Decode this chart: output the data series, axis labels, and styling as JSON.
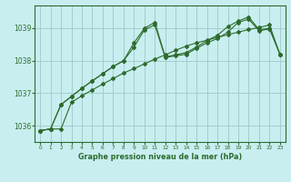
{
  "title": "Graphe pression niveau de la mer (hPa)",
  "background_color": "#c8eef0",
  "grid_color": "#a0c8c8",
  "line_color": "#2d6b2d",
  "xlim": [
    -0.5,
    23.5
  ],
  "ylim": [
    1035.5,
    1039.7
  ],
  "yticks": [
    1036,
    1037,
    1038,
    1039
  ],
  "xticks": [
    0,
    1,
    2,
    3,
    4,
    5,
    6,
    7,
    8,
    9,
    10,
    11,
    12,
    13,
    14,
    15,
    16,
    17,
    18,
    19,
    20,
    21,
    22,
    23
  ],
  "series1_x": [
    0,
    1,
    2,
    3,
    4,
    5,
    6,
    7,
    8,
    9,
    10,
    11,
    12,
    13,
    14,
    15,
    16,
    17,
    18,
    19,
    20,
    21,
    22,
    23
  ],
  "series1_y": [
    1035.85,
    1035.9,
    1036.65,
    1036.9,
    1037.15,
    1037.38,
    1037.6,
    1037.82,
    1038.0,
    1038.42,
    1038.95,
    1039.1,
    1038.1,
    1038.15,
    1038.2,
    1038.38,
    1038.55,
    1038.68,
    1038.88,
    1039.18,
    1039.28,
    1038.92,
    1038.98,
    1038.2
  ],
  "series2_x": [
    0,
    1,
    2,
    3,
    4,
    5,
    6,
    7,
    8,
    9,
    10,
    11,
    12,
    13,
    14,
    15,
    16,
    17,
    18,
    19,
    20,
    21,
    22,
    23
  ],
  "series2_y": [
    1035.85,
    1035.9,
    1036.65,
    1036.9,
    1037.15,
    1037.38,
    1037.6,
    1037.82,
    1038.0,
    1038.55,
    1039.0,
    1039.18,
    1038.12,
    1038.18,
    1038.25,
    1038.42,
    1038.62,
    1038.78,
    1039.05,
    1039.22,
    1039.35,
    1038.95,
    1039.0,
    1038.2
  ],
  "series3_x": [
    0,
    1,
    2,
    3,
    4,
    5,
    6,
    7,
    8,
    9,
    10,
    11,
    12,
    13,
    14,
    15,
    16,
    17,
    18,
    19,
    20,
    21,
    22,
    23
  ],
  "series3_y": [
    1035.85,
    1035.9,
    1035.9,
    1036.72,
    1036.92,
    1037.1,
    1037.28,
    1037.45,
    1037.62,
    1037.76,
    1037.9,
    1038.05,
    1038.18,
    1038.32,
    1038.45,
    1038.55,
    1038.63,
    1038.72,
    1038.8,
    1038.88,
    1038.96,
    1039.02,
    1039.1,
    1038.18
  ]
}
